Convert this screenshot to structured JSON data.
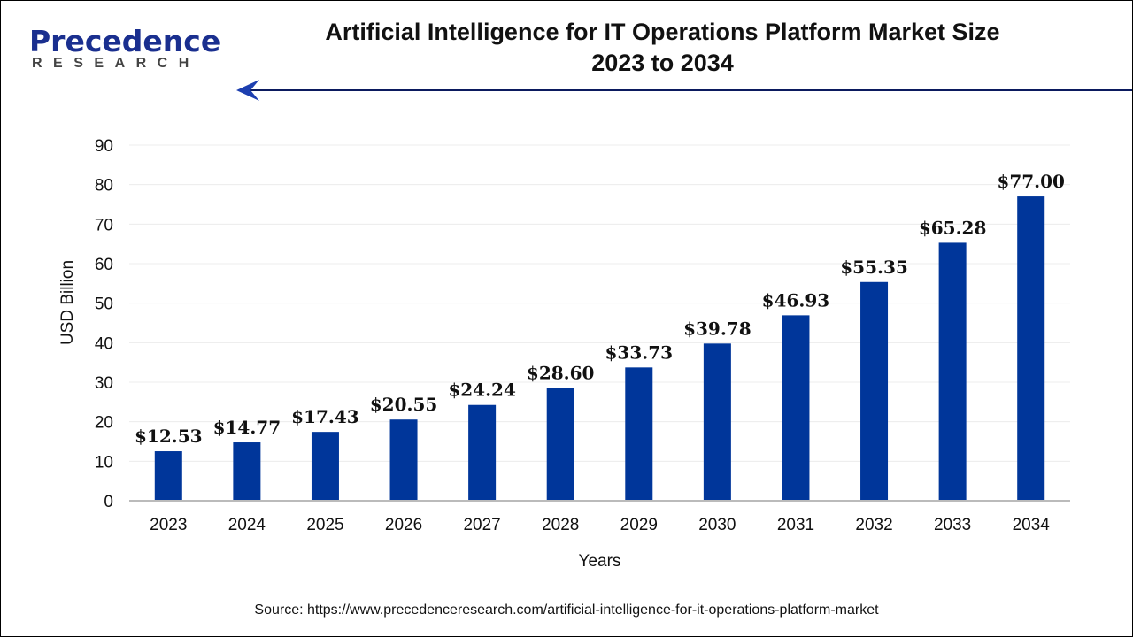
{
  "logo": {
    "main": "Precedence",
    "sub": "RESEARCH"
  },
  "header": {
    "title_line1": "Artificial Intelligence for IT Operations Platform Market Size",
    "title_line2": "2023 to 2034"
  },
  "source": "Source: https://www.precedenceresearch.com/artificial-intelligence-for-it-operations-platform-market",
  "colors": {
    "bar": "#00369a",
    "logo": "#1a2f8f",
    "arrow": "#0b1a5e"
  },
  "chart_data": {
    "type": "bar",
    "title": "Artificial Intelligence for IT Operations Platform Market Size 2023 to 2034",
    "xlabel": "Years",
    "ylabel": "USD Billion",
    "ylim": [
      0,
      90
    ],
    "yticks": [
      0,
      10,
      20,
      30,
      40,
      50,
      60,
      70,
      80,
      90
    ],
    "grid": true,
    "categories": [
      "2023",
      "2024",
      "2025",
      "2026",
      "2027",
      "2028",
      "2029",
      "2030",
      "2031",
      "2032",
      "2033",
      "2034"
    ],
    "values": [
      12.53,
      14.77,
      17.43,
      20.55,
      24.24,
      28.6,
      33.73,
      39.78,
      46.93,
      55.35,
      65.28,
      77.0
    ],
    "data_labels": [
      "$12.53",
      "$14.77",
      "$17.43",
      "$20.55",
      "$24.24",
      "$28.60",
      "$33.73",
      "$39.78",
      "$46.93",
      "$55.35",
      "$65.28",
      "$77.00"
    ]
  }
}
